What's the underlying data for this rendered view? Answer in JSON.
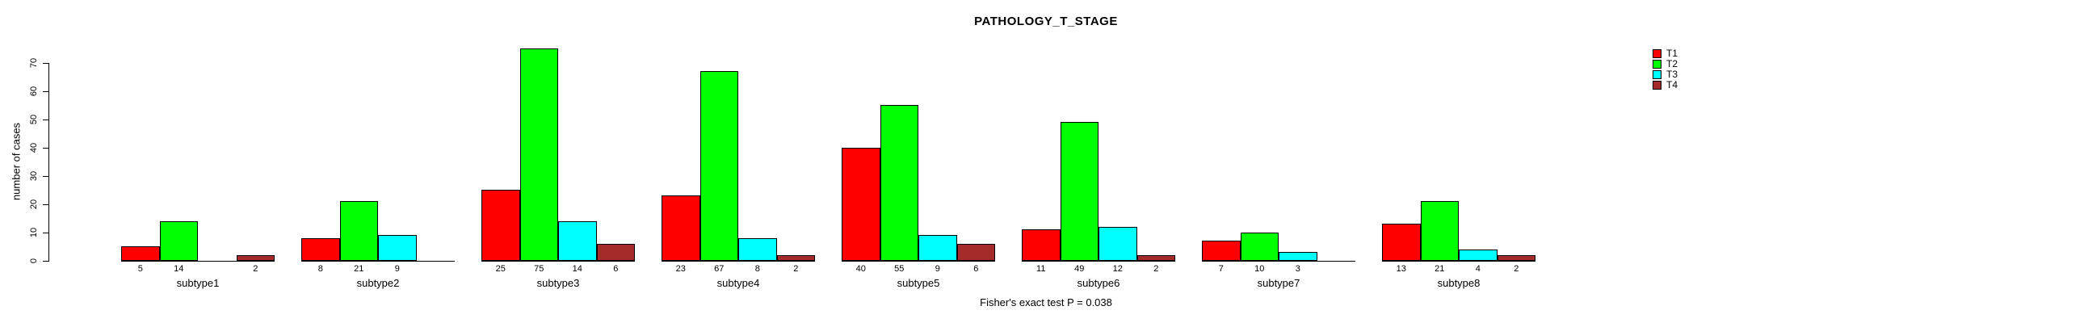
{
  "title": "PATHOLOGY_T_STAGE",
  "footnote": "Fisher's exact test P = 0.038",
  "chart_data": {
    "type": "bar",
    "title": "PATHOLOGY_T_STAGE",
    "xlabel": "",
    "ylabel": "number of cases",
    "ylim": [
      0,
      70
    ],
    "yticks": [
      0,
      10,
      20,
      30,
      40,
      50,
      60,
      70
    ],
    "grid": false,
    "legend_position": "top-right",
    "bar_value_labels_shown": true,
    "categories": [
      "subtype1",
      "subtype2",
      "subtype3",
      "subtype4",
      "subtype5",
      "subtype6",
      "subtype7",
      "subtype8"
    ],
    "series": [
      {
        "name": "T1",
        "color": "#ff0000",
        "values": [
          5,
          8,
          25,
          23,
          40,
          11,
          7,
          13
        ]
      },
      {
        "name": "T2",
        "color": "#00ff00",
        "values": [
          14,
          21,
          75,
          67,
          55,
          49,
          10,
          21
        ]
      },
      {
        "name": "T3",
        "color": "#00ffff",
        "values": [
          null,
          9,
          14,
          8,
          9,
          12,
          3,
          4
        ]
      },
      {
        "name": "T4",
        "color": "#a52a2a",
        "values": [
          2,
          null,
          6,
          2,
          6,
          2,
          null,
          2
        ]
      }
    ],
    "footnote": "Fisher's exact test P = 0.038"
  },
  "legend": {
    "items": [
      {
        "label": "T1",
        "color": "#ff0000"
      },
      {
        "label": "T2",
        "color": "#00ff00"
      },
      {
        "label": "T3",
        "color": "#00ffff"
      },
      {
        "label": "T4",
        "color": "#a52a2a"
      }
    ]
  }
}
